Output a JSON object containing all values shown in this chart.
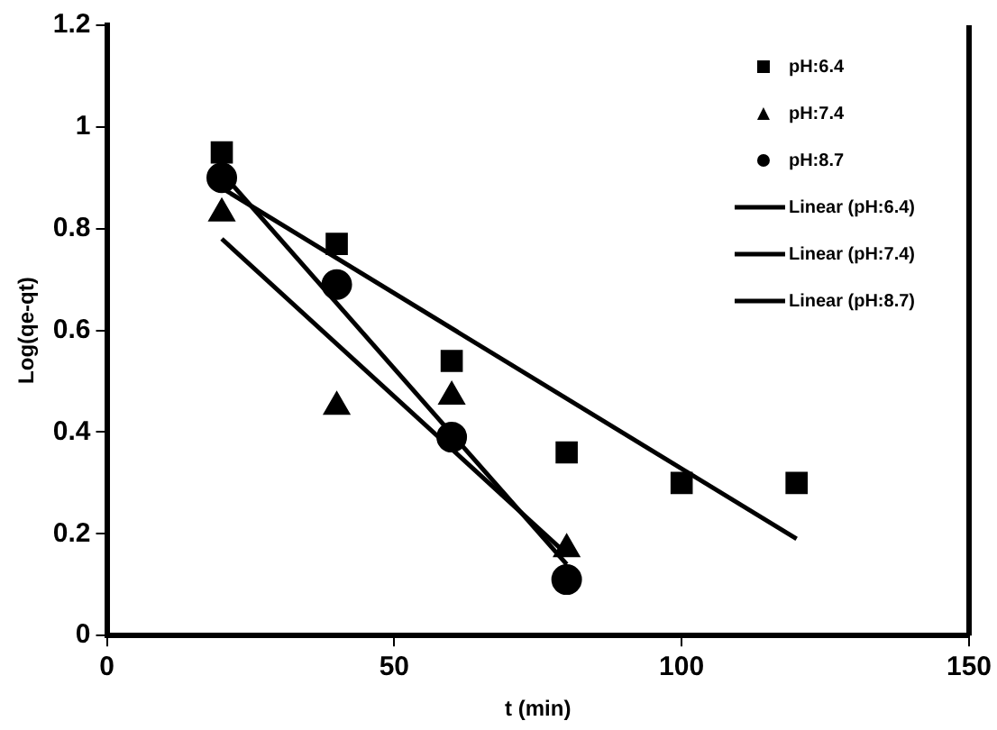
{
  "chart_data": {
    "type": "scatter",
    "xlabel": "t (min)",
    "ylabel": "Log(qe-qt)",
    "xlim": [
      0,
      150
    ],
    "xticks": [
      0,
      50,
      100,
      150
    ],
    "ylim": [
      0,
      1.2
    ],
    "yticks": [
      0,
      0.2,
      0.4,
      0.6,
      0.8,
      1,
      1.2
    ],
    "grid": false,
    "legend": "top right",
    "series": [
      {
        "name": "pH:6.4",
        "marker": "square",
        "color": "#000000",
        "x": [
          20,
          40,
          60,
          80,
          100,
          120
        ],
        "values": [
          0.95,
          0.77,
          0.54,
          0.36,
          0.3,
          0.3
        ]
      },
      {
        "name": "pH:7.4",
        "marker": "triangle",
        "color": "#000000",
        "x": [
          20,
          40,
          60,
          80
        ],
        "values": [
          0.83,
          0.45,
          0.47,
          0.17
        ]
      },
      {
        "name": "pH:8.7",
        "marker": "circle",
        "color": "#000000",
        "x": [
          20,
          40,
          60,
          80
        ],
        "values": [
          0.9,
          0.69,
          0.39,
          0.11
        ]
      },
      {
        "name": "Linear (pH:6.4)",
        "type": "line",
        "marker": "none",
        "color": "#000000",
        "x": [
          20,
          120
        ],
        "values": [
          0.88,
          0.19
        ]
      },
      {
        "name": "Linear (pH:7.4)",
        "type": "line",
        "marker": "none",
        "color": "#000000",
        "x": [
          20,
          80
        ],
        "values": [
          0.78,
          0.16
        ]
      },
      {
        "name": "Linear (pH:8.7)",
        "type": "line",
        "marker": "none",
        "color": "#000000",
        "x": [
          20,
          80
        ],
        "values": [
          0.91,
          0.14
        ]
      }
    ]
  }
}
